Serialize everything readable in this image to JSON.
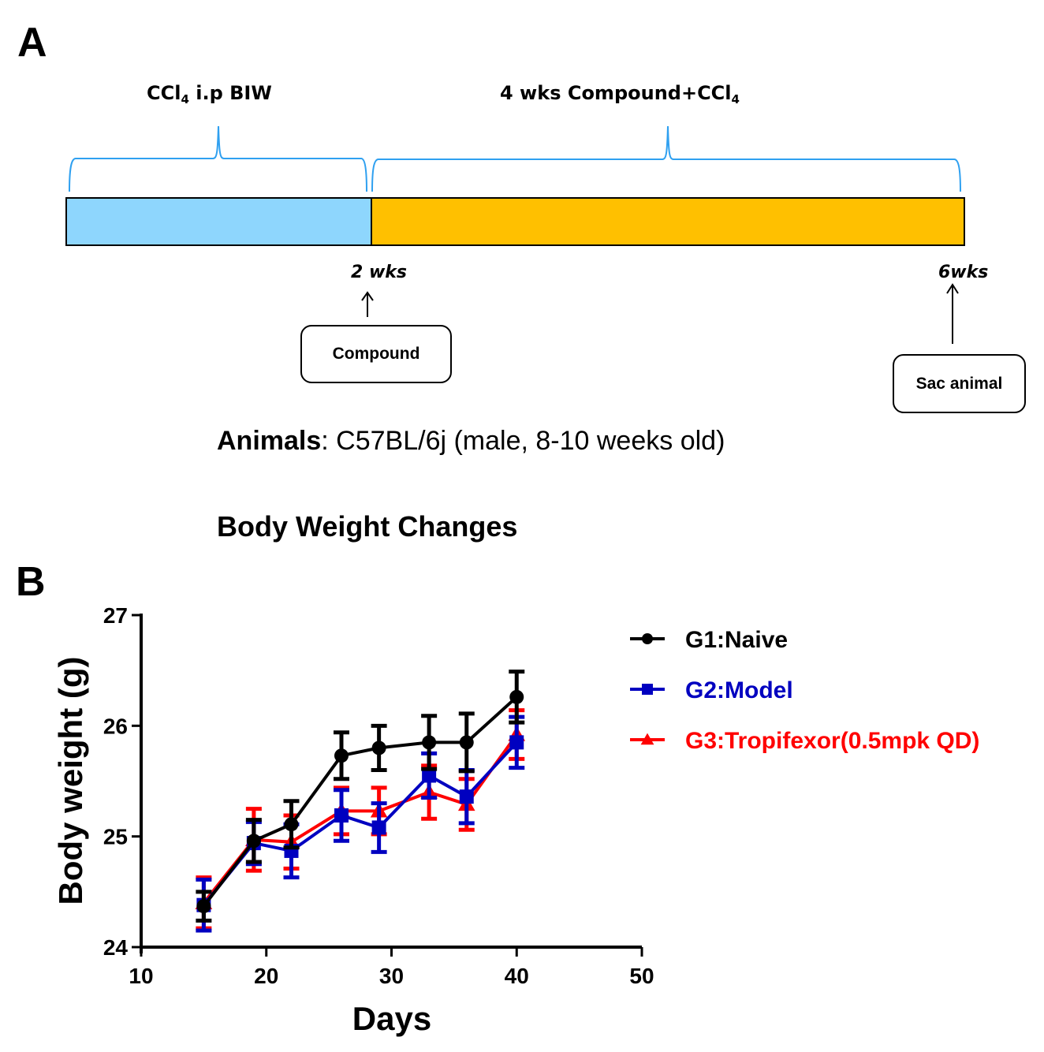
{
  "panel_a": {
    "letter": "A",
    "phase1_label": "CCl",
    "phase1_sub": "4",
    "phase1_suffix": " i.p BIW",
    "phase2_label": "4 wks Compound+CCl",
    "phase2_sub": "4",
    "phase1_color": "#8ED6FD",
    "phase2_color": "#FFC000",
    "bracket_color": "#2FA0F0",
    "marker1_label": "2 wks",
    "marker2_label": "6wks",
    "box1_label": "Compound",
    "box2_label": "Sac animal",
    "animals_bold": "Animals",
    "animals_text": ": C57BL/6j (male, 8-10 weeks old)"
  },
  "panel_b": {
    "letter": "B"
  },
  "chart_data": {
    "type": "line",
    "title": "Body Weight  Changes",
    "xlabel": "Days",
    "ylabel": "Body weight (g)",
    "xlim": [
      10,
      50
    ],
    "ylim": [
      24,
      27
    ],
    "xticks": [
      10,
      20,
      30,
      40,
      50
    ],
    "yticks": [
      24,
      25,
      26,
      27
    ],
    "grid": false,
    "legend_position": "right",
    "x": [
      15,
      19,
      22,
      26,
      29,
      33,
      36,
      40
    ],
    "series": [
      {
        "name": "G1:Naive",
        "color": "#000000",
        "marker": "circle",
        "values": [
          24.37,
          24.96,
          25.11,
          25.73,
          25.8,
          25.85,
          25.85,
          26.26
        ],
        "errors": [
          0.13,
          0.19,
          0.21,
          0.21,
          0.2,
          0.24,
          0.26,
          0.23
        ]
      },
      {
        "name": "G2:Model",
        "color": "#0000C0",
        "marker": "square",
        "values": [
          24.38,
          24.94,
          24.87,
          25.19,
          25.08,
          25.55,
          25.36,
          25.85
        ],
        "errors": [
          0.23,
          0.19,
          0.24,
          0.23,
          0.22,
          0.2,
          0.24,
          0.23
        ]
      },
      {
        "name": "G3:Tropifexor(0.5mpk QD)",
        "color": "#FF0000",
        "marker": "triangle",
        "values": [
          24.4,
          24.97,
          24.95,
          25.23,
          25.23,
          25.4,
          25.29,
          25.92
        ],
        "errors": [
          0.23,
          0.28,
          0.24,
          0.21,
          0.21,
          0.24,
          0.23,
          0.22
        ]
      }
    ]
  }
}
